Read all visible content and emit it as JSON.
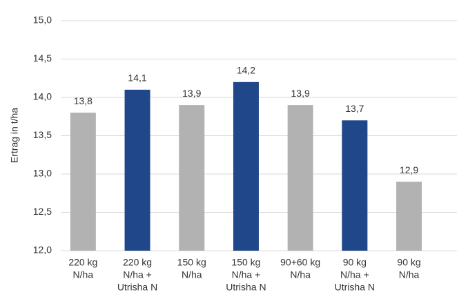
{
  "chart_data": {
    "type": "bar",
    "y_label": "Ertrag in t/ha",
    "categories": [
      [
        "220 kg",
        "N/ha"
      ],
      [
        "220 kg",
        "N/ha +",
        "Utrisha N"
      ],
      [
        "150 kg",
        "N/ha"
      ],
      [
        "150 kg",
        "N/ha +",
        "Utrisha N"
      ],
      [
        "90+60 kg",
        "N/ha"
      ],
      [
        "90 kg",
        "N/ha +",
        "Utrisha N"
      ],
      [
        "90 kg",
        "N/ha"
      ]
    ],
    "values": [
      13.8,
      14.1,
      13.9,
      14.2,
      13.9,
      13.7,
      12.9
    ],
    "value_labels": [
      "13,8",
      "14,1",
      "13,9",
      "14,2",
      "13,9",
      "13,7",
      "12,9"
    ],
    "colors": [
      "#b2b2b2",
      "#1f4789",
      "#b2b2b2",
      "#1f4789",
      "#b2b2b2",
      "#1f4789",
      "#b2b2b2"
    ],
    "ylim": [
      12,
      15
    ],
    "yticks": [
      {
        "value": 12,
        "label": "12,0"
      },
      {
        "value": 12.5,
        "label": "12,5"
      },
      {
        "value": 13,
        "label": "13,0"
      },
      {
        "value": 13.5,
        "label": "13,5"
      },
      {
        "value": 14,
        "label": "14,0"
      },
      {
        "value": 14.5,
        "label": "14,5"
      },
      {
        "value": 15,
        "label": "15,0"
      }
    ],
    "grid": true
  }
}
